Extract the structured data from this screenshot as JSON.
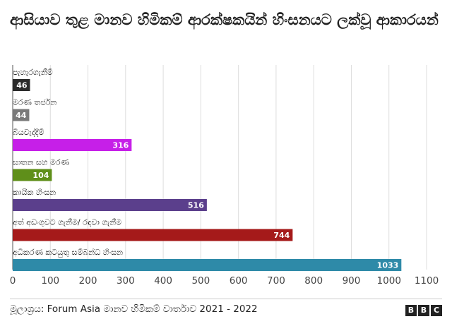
{
  "chart_data": {
    "type": "bar",
    "orientation": "horizontal",
    "title": "ආසියාව තුළ මානව හිමිකම් ආරක්ෂකයින් හිංසනයට ලක්වූ ආකාරයන්",
    "categories": [
      "පැහැරගැනීම්",
      "මරණ තර්ජන",
      "බියවැද්දීම්",
      "ඝාතන සහ මරණ",
      "කායික හිංසන",
      "අත් අඩංගුවට ගැනීම/ රඳවා ගැනීම",
      "අධිකරණ කටයුතු සම්බන්ධ හිංසන"
    ],
    "values": [
      46,
      44,
      316,
      104,
      516,
      744,
      1033
    ],
    "value_labels": [
      "46",
      "44",
      "316",
      "104",
      "516",
      "744",
      "1033"
    ],
    "colors": [
      "#2b2b2b",
      "#7a7a7a",
      "#c61fe8",
      "#5f8f1a",
      "#5b3f8c",
      "#a51a1a",
      "#2e8aa8"
    ],
    "xlim": [
      0,
      1100
    ],
    "ticks": [
      "0",
      "100",
      "200",
      "300",
      "400",
      "500",
      "600",
      "700",
      "800",
      "900",
      "1000",
      "1100"
    ],
    "xlabel": "",
    "ylabel": "",
    "grid": true
  },
  "footer": {
    "source": "මූලාශ්‍රය: Forum Asia මානව හිමිකම් වාර්තාව 2021 - 2022",
    "logo_letters": [
      "B",
      "B",
      "C"
    ]
  }
}
